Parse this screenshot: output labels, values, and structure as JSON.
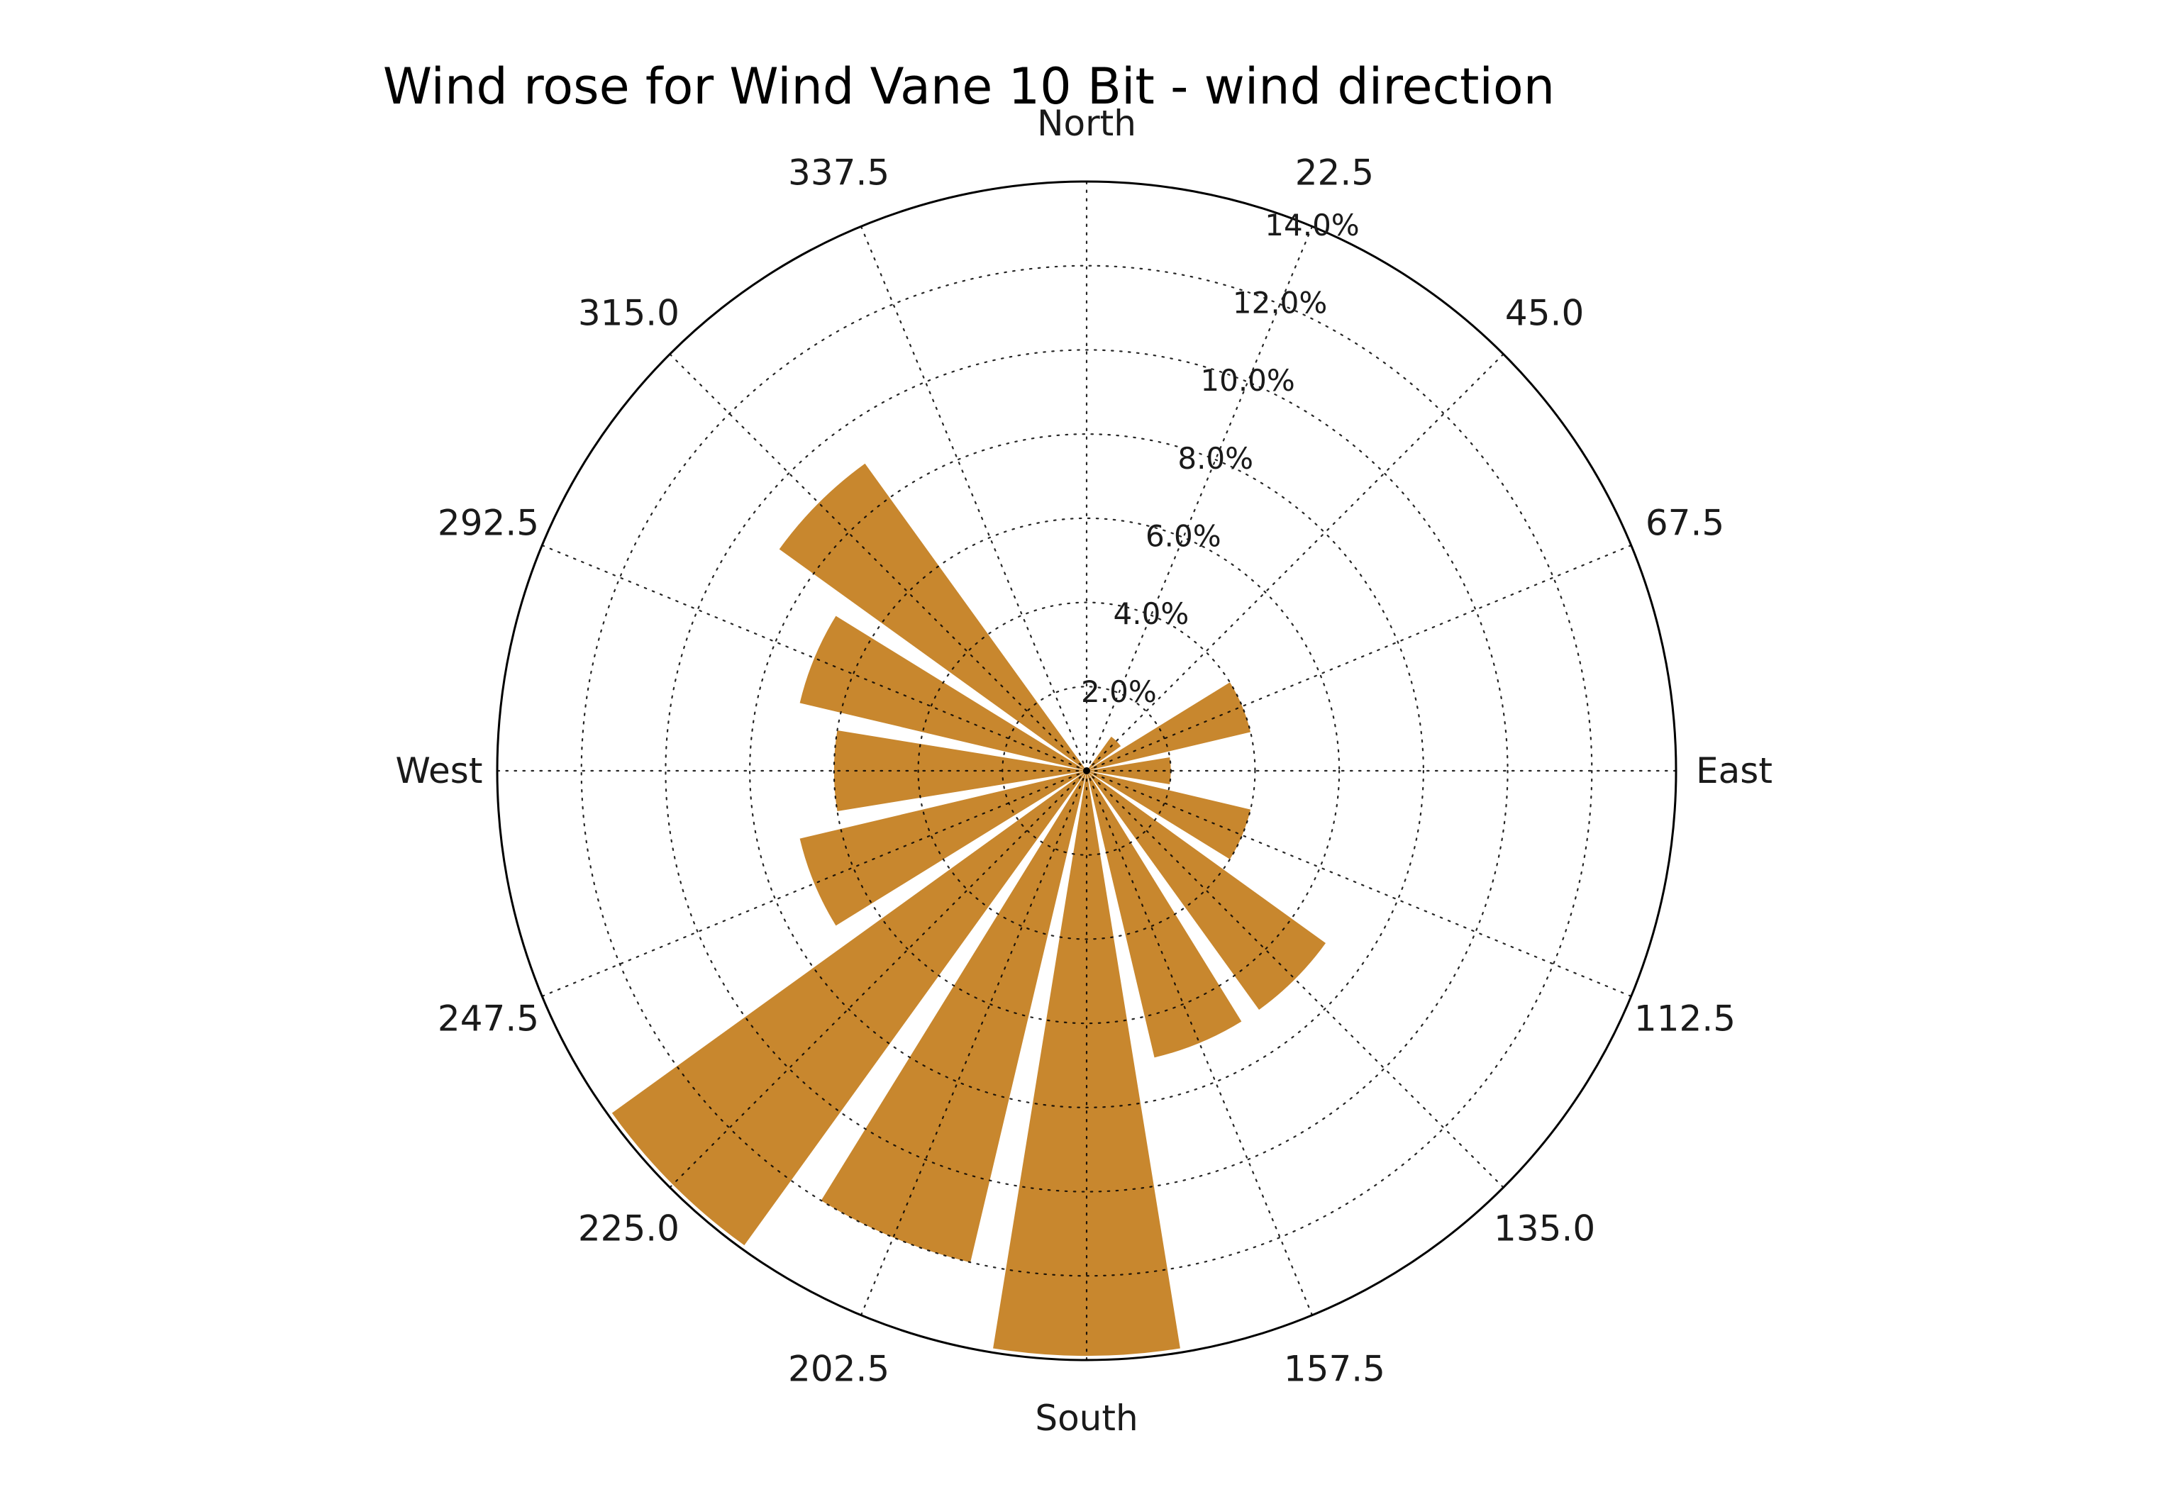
{
  "page": {
    "background": "#ffffff"
  },
  "chart_data": {
    "type": "bar",
    "subtype": "windrose-polar",
    "title": "Wind rose for Wind Vane 10 Bit - wind direction",
    "units": "percent",
    "direction_labels": [
      "North",
      "22.5",
      "45.0",
      "67.5",
      "East",
      "112.5",
      "135.0",
      "157.5",
      "South",
      "202.5",
      "225.0",
      "247.5",
      "West",
      "292.5",
      "315.0",
      "337.5"
    ],
    "directions_deg": [
      0,
      22.5,
      45,
      67.5,
      90,
      112.5,
      135,
      157.5,
      180,
      202.5,
      225,
      247.5,
      270,
      292.5,
      315,
      337.5
    ],
    "values_percent": [
      0,
      0,
      1.0,
      4.0,
      2.0,
      4.0,
      7.0,
      7.0,
      13.9,
      12.0,
      13.9,
      7.0,
      6.0,
      7.0,
      9.0,
      0
    ],
    "radial_ticks_percent": [
      2,
      4,
      6,
      8,
      10,
      12,
      14
    ],
    "radial_tick_labels": [
      "2.0%",
      "4.0%",
      "6.0%",
      "8.0%",
      "10.0%",
      "12.0%",
      "14.0%"
    ],
    "rlim": [
      0,
      14
    ],
    "rmax_percent": 14,
    "bar_width_deg": 18.4,
    "radial_label_angle_deg": 22.5,
    "grid": "dotted",
    "legend": "none",
    "colors": {
      "bar": "#c8872e",
      "grid": "#000000",
      "outline": "#000000",
      "text": "#1a1a1a",
      "title": "#000000"
    }
  }
}
